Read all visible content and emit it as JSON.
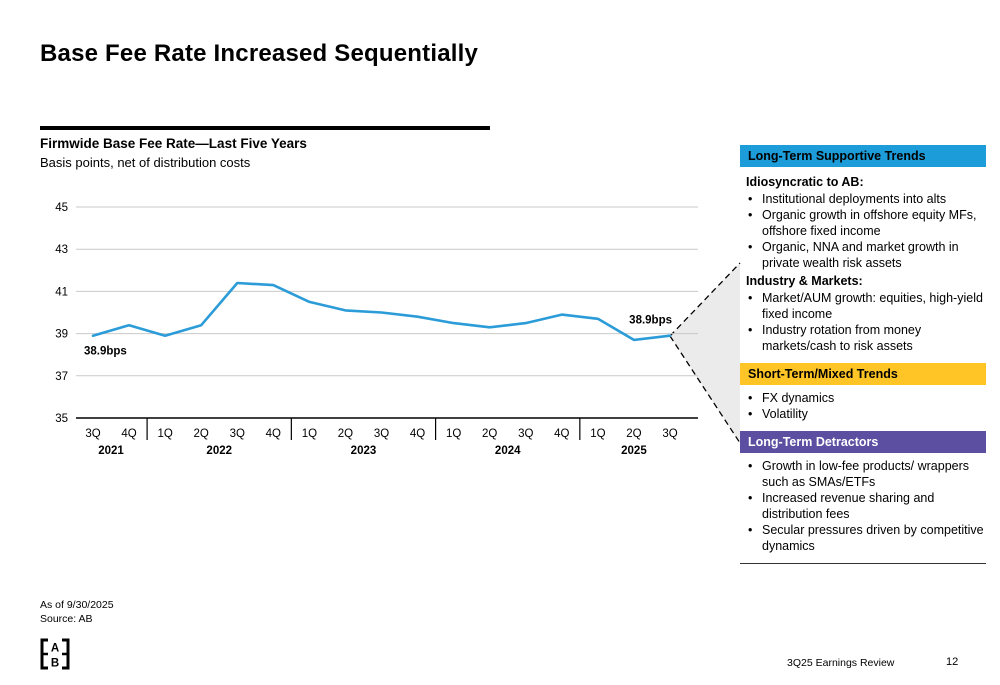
{
  "slide": {
    "title": "Base Fee Rate Increased Sequentially",
    "footer": {
      "as_of": "As of 9/30/2025",
      "source": "Source: AB",
      "deck_title": "3Q25 Earnings Review",
      "page_number": "12"
    }
  },
  "chart": {
    "heading": "Firmwide Base Fee Rate—Last Five Years",
    "subheading": "Basis points, net of distribution costs"
  },
  "chart_data": {
    "type": "line",
    "title": "Firmwide Base Fee Rate—Last Five Years",
    "subtitle": "Basis points, net of distribution costs",
    "unit": "bps",
    "quarters": [
      "3Q",
      "4Q",
      "1Q",
      "2Q",
      "3Q",
      "4Q",
      "1Q",
      "2Q",
      "3Q",
      "4Q",
      "1Q",
      "2Q",
      "3Q",
      "4Q",
      "1Q",
      "2Q",
      "3Q"
    ],
    "years": [
      {
        "label": "2021",
        "count": 2
      },
      {
        "label": "2022",
        "count": 4
      },
      {
        "label": "2023",
        "count": 4
      },
      {
        "label": "2024",
        "count": 4
      },
      {
        "label": "2025",
        "count": 3
      }
    ],
    "values": [
      38.9,
      39.4,
      38.9,
      39.4,
      41.4,
      41.3,
      40.5,
      40.1,
      40.0,
      39.8,
      39.5,
      39.3,
      39.5,
      39.9,
      39.7,
      38.7,
      38.9
    ],
    "ylim": [
      35,
      45
    ],
    "yticks": [
      35,
      37,
      39,
      41,
      43,
      45
    ],
    "grid": true,
    "legend": "none",
    "line_color": "#2B9CD8",
    "annotations": [
      {
        "index": 0,
        "text": "38.9bps",
        "placement": "below"
      },
      {
        "index": 16,
        "text": "38.9bps",
        "placement": "above"
      }
    ]
  },
  "sidebar": {
    "sections": [
      {
        "header": "Long-Term Supportive Trends",
        "header_bg": "#1C9CD8",
        "header_color": "#000000",
        "groups": [
          {
            "title": "Idiosyncratic to AB:",
            "bullets": [
              "Institutional deployments into alts",
              "Organic growth in offshore equity MFs, offshore fixed income",
              "Organic, NNA and market growth in private wealth risk assets"
            ]
          },
          {
            "title": "Industry & Markets:",
            "bullets": [
              "Market/AUM growth: equities, high-yield fixed income",
              "Industry rotation from money markets/cash to risk assets"
            ]
          }
        ]
      },
      {
        "header": "Short-Term/Mixed Trends",
        "header_bg": "#FFC425",
        "header_color": "#000000",
        "groups": [
          {
            "title": "",
            "bullets": [
              "FX dynamics",
              "Volatility"
            ]
          }
        ]
      },
      {
        "header": "Long-Term Detractors",
        "header_bg": "#5C4EA1",
        "header_color": "#FFFFFF",
        "groups": [
          {
            "title": "",
            "bullets": [
              "Growth in low-fee products/ wrappers such as SMAs/ETFs",
              "Increased revenue sharing and distribution fees",
              "Secular pressures driven by competitive dynamics"
            ]
          }
        ]
      }
    ]
  },
  "logo": {
    "letters": [
      "A",
      "B"
    ]
  }
}
